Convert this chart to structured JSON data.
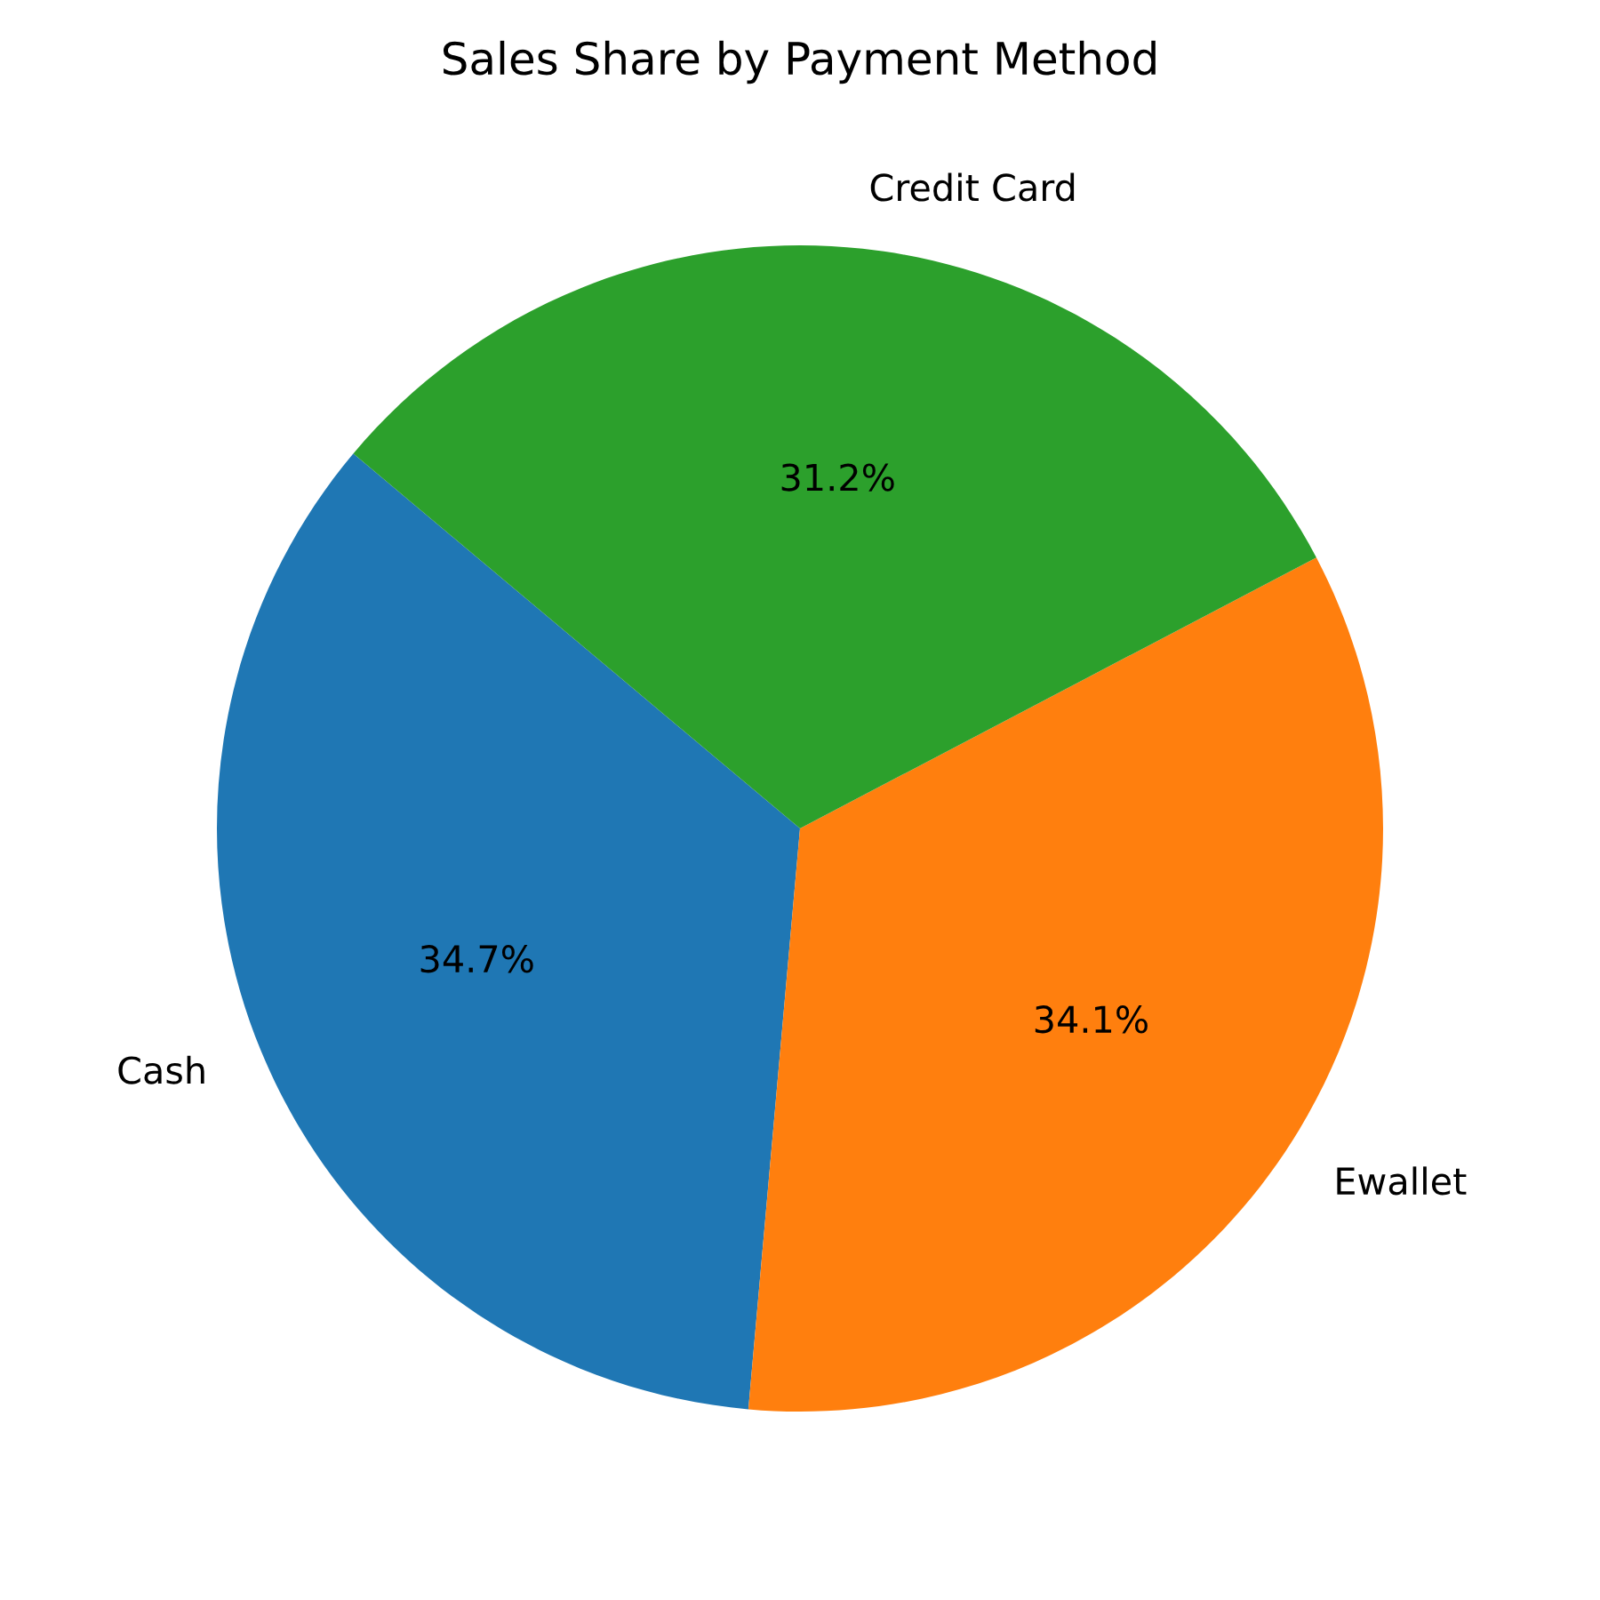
{
  "chart_data": {
    "type": "pie",
    "title": "Sales Share by Payment Method",
    "categories": [
      "Cash",
      "Ewallet",
      "Credit Card"
    ],
    "values": [
      34.7,
      34.1,
      31.2
    ],
    "colors": [
      "#1f77b4",
      "#ff7f0e",
      "#2ca02c"
    ],
    "value_labels": [
      "34.7%",
      "34.1%",
      "31.2%"
    ]
  }
}
